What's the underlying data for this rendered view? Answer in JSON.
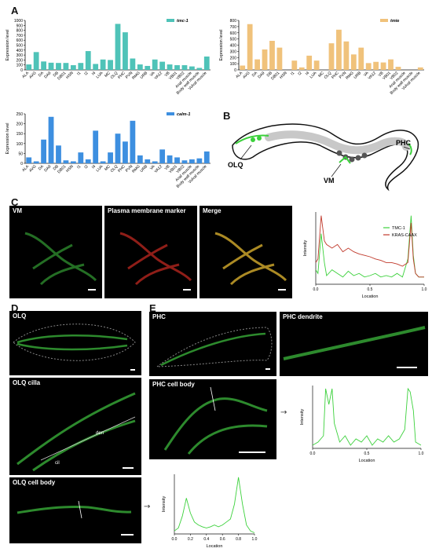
{
  "panels": {
    "A": "A",
    "B": "B",
    "C": "C",
    "D": "D",
    "E": "E"
  },
  "chart_data": [
    {
      "type": "bar",
      "legend": "tmc-1",
      "ylabel": "Expression level",
      "color": "#4fc3b8",
      "ylim": [
        0,
        1000
      ],
      "yticks": [
        0,
        100,
        200,
        300,
        400,
        500,
        600,
        700,
        800,
        900,
        1000
      ],
      "categories": [
        "ALA",
        "AVG",
        "DA",
        "DA9",
        "DB",
        "DB01",
        "HSN",
        "I1",
        "I2",
        "I4",
        "LUA",
        "MC",
        "OLQ",
        "PHC",
        "PVN",
        "RMG",
        "URB",
        "VA",
        "VA12",
        "VB",
        "VB01",
        "VB02",
        "Anal muscle",
        "Body wall muscle",
        "Vulval muscle"
      ],
      "values": [
        110,
        360,
        170,
        145,
        140,
        140,
        95,
        140,
        380,
        120,
        210,
        200,
        930,
        760,
        230,
        110,
        80,
        210,
        165,
        110,
        95,
        95,
        70,
        40,
        270
      ]
    },
    {
      "type": "bar",
      "legend": "tmie",
      "ylabel": "Expression level",
      "color": "#f0c27b",
      "ylim": [
        0,
        800
      ],
      "yticks": [
        0,
        100,
        200,
        300,
        400,
        500,
        600,
        700,
        800
      ],
      "categories": [
        "ALA",
        "AVG",
        "DA",
        "DA9",
        "DB",
        "DB01",
        "HSN",
        "I1",
        "I2",
        "I4",
        "LUA",
        "MC",
        "OLQ",
        "PHC",
        "PVN",
        "RMG",
        "URB",
        "VA",
        "VA12",
        "VB",
        "VB01",
        "VB02",
        "Anal muscle",
        "Body wall muscle",
        "Vulval muscle"
      ],
      "values": [
        70,
        740,
        170,
        330,
        470,
        360,
        0,
        150,
        40,
        230,
        150,
        0,
        430,
        650,
        460,
        250,
        360,
        110,
        130,
        120,
        170,
        50,
        0,
        0,
        40
      ]
    },
    {
      "type": "bar",
      "legend": "calm-1",
      "ylabel": "Expression level",
      "color": "#3d8fe0",
      "ylim": [
        0,
        250
      ],
      "yticks": [
        0,
        50,
        100,
        150,
        200,
        250
      ],
      "categories": [
        "ALA",
        "AVG",
        "DA",
        "DA9",
        "DB",
        "DB01",
        "HSN",
        "I1",
        "I2",
        "I4",
        "LUA",
        "MC",
        "OLQ",
        "PHC",
        "PVN",
        "RMG",
        "URB",
        "VA",
        "VA12",
        "VB",
        "VB01",
        "VB02",
        "Anal muscle",
        "Body wall muscle",
        "Vulval muscle"
      ],
      "values": [
        30,
        10,
        120,
        235,
        90,
        15,
        10,
        55,
        20,
        165,
        10,
        55,
        150,
        110,
        215,
        40,
        20,
        10,
        70,
        40,
        30,
        15,
        20,
        25,
        60
      ]
    },
    {
      "type": "line",
      "xlabel": "Location",
      "ylabel": "Intensity",
      "xlim": [
        0,
        1
      ],
      "ylim": [
        0,
        1
      ],
      "xticks": [
        "0.0",
        "0.5",
        "1.0"
      ],
      "series": [
        {
          "name": "TMC-1",
          "color": "#3cd13c",
          "x": [
            0,
            0.02,
            0.05,
            0.08,
            0.1,
            0.15,
            0.2,
            0.25,
            0.3,
            0.35,
            0.4,
            0.45,
            0.5,
            0.55,
            0.6,
            0.65,
            0.7,
            0.75,
            0.8,
            0.85,
            0.88,
            0.9,
            0.92,
            0.95,
            1.0
          ],
          "y": [
            0.2,
            0.15,
            0.7,
            0.3,
            0.12,
            0.2,
            0.15,
            0.1,
            0.18,
            0.12,
            0.15,
            0.1,
            0.12,
            0.15,
            0.1,
            0.12,
            0.1,
            0.15,
            0.1,
            0.35,
            0.95,
            0.4,
            0.15,
            0.1,
            0.1
          ]
        },
        {
          "name": "KRAS-CAAX",
          "color": "#c0392b",
          "x": [
            0,
            0.02,
            0.05,
            0.08,
            0.1,
            0.15,
            0.2,
            0.25,
            0.3,
            0.35,
            0.4,
            0.45,
            0.5,
            0.55,
            0.6,
            0.65,
            0.7,
            0.75,
            0.8,
            0.85,
            0.88,
            0.9,
            0.92,
            0.95,
            1.0
          ],
          "y": [
            0.3,
            0.35,
            0.95,
            0.6,
            0.55,
            0.5,
            0.55,
            0.45,
            0.5,
            0.45,
            0.42,
            0.4,
            0.38,
            0.35,
            0.33,
            0.3,
            0.3,
            0.28,
            0.25,
            0.3,
            0.85,
            0.35,
            0.15,
            0.1,
            0.1
          ]
        }
      ]
    },
    {
      "type": "line",
      "xlabel": "Location",
      "ylabel": "Intensity",
      "xlim": [
        0,
        1
      ],
      "ylim": [
        0,
        1
      ],
      "xticks": [
        "0.0",
        "0.5",
        "1.0"
      ],
      "series": [
        {
          "color": "#3cd13c",
          "x": [
            0,
            0.05,
            0.1,
            0.12,
            0.15,
            0.18,
            0.2,
            0.25,
            0.3,
            0.35,
            0.4,
            0.45,
            0.5,
            0.55,
            0.6,
            0.65,
            0.7,
            0.75,
            0.8,
            0.85,
            0.88,
            0.9,
            0.93,
            0.95,
            1.0
          ],
          "y": [
            0.05,
            0.1,
            0.2,
            0.95,
            0.7,
            0.95,
            0.4,
            0.1,
            0.2,
            0.05,
            0.15,
            0.1,
            0.2,
            0.05,
            0.15,
            0.1,
            0.2,
            0.1,
            0.15,
            0.3,
            0.95,
            0.9,
            0.6,
            0.1,
            0.05
          ]
        }
      ]
    },
    {
      "type": "line",
      "xlabel": "Location",
      "ylabel": "Intensity",
      "xlim": [
        0,
        1
      ],
      "ylim": [
        0,
        1
      ],
      "xticks": [
        "0.0",
        "0.2",
        "0.4",
        "0.6",
        "0.8",
        "1.0"
      ],
      "series": [
        {
          "color": "#3cd13c",
          "x": [
            0,
            0.05,
            0.1,
            0.15,
            0.2,
            0.25,
            0.3,
            0.35,
            0.4,
            0.45,
            0.5,
            0.55,
            0.6,
            0.65,
            0.7,
            0.75,
            0.8,
            0.85,
            0.9,
            0.95,
            1.0
          ],
          "y": [
            0.05,
            0.1,
            0.3,
            0.6,
            0.35,
            0.2,
            0.15,
            0.12,
            0.1,
            0.12,
            0.15,
            0.12,
            0.15,
            0.2,
            0.25,
            0.5,
            0.95,
            0.5,
            0.15,
            0.05,
            0.02
          ]
        }
      ]
    }
  ],
  "schematic": {
    "labels": {
      "olq": "OLQ",
      "vm": "VM",
      "phc": "PHC"
    }
  },
  "micrographs": {
    "c_vm": "VM",
    "c_pm": "Plasma membrane marker",
    "c_merge": "Merge",
    "d_olq": "OLQ",
    "d_cilia": "OLQ cilla",
    "d_cell_body": "OLQ cell body",
    "d_den": "den",
    "d_cil": "cil",
    "e_phc": "PHC",
    "e_dendrite": "PHC dendrite",
    "e_cell_body": "PHC cell body"
  },
  "arrows": {
    "right": "→"
  }
}
